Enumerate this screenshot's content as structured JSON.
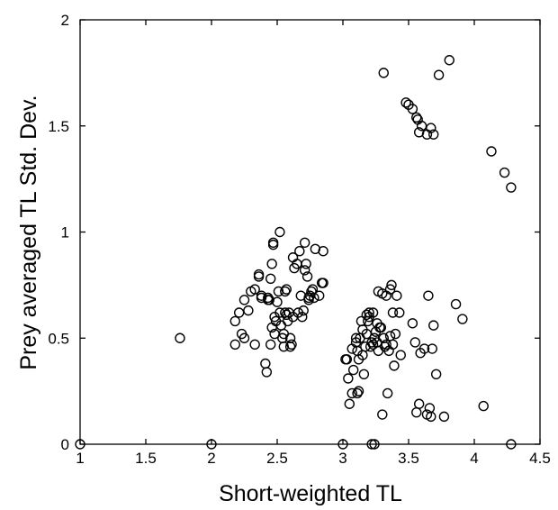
{
  "chart_data": {
    "type": "scatter",
    "xlabel": "Short-weighted TL",
    "ylabel": "Prey averaged TL Std. Dev.",
    "xlim": [
      1,
      4.5
    ],
    "ylim": [
      0,
      2
    ],
    "xticks": [
      "1",
      "1.5",
      "2",
      "2.5",
      "3",
      "3.5",
      "4",
      "4.5"
    ],
    "yticks": [
      "0",
      "0.5",
      "1",
      "1.5",
      "2"
    ],
    "grid": false,
    "legend": "none",
    "marker": "open-circle",
    "points": [
      [
        1.0,
        0.0
      ],
      [
        2.0,
        0.0
      ],
      [
        3.0,
        0.0
      ],
      [
        3.22,
        0.0
      ],
      [
        3.24,
        0.0
      ],
      [
        4.28,
        0.0
      ],
      [
        1.76,
        0.5
      ],
      [
        2.18,
        0.47
      ],
      [
        2.18,
        0.58
      ],
      [
        2.21,
        0.62
      ],
      [
        2.23,
        0.52
      ],
      [
        2.25,
        0.5
      ],
      [
        2.25,
        0.68
      ],
      [
        2.28,
        0.63
      ],
      [
        2.3,
        0.72
      ],
      [
        2.33,
        0.73
      ],
      [
        2.33,
        0.47
      ],
      [
        2.36,
        0.8
      ],
      [
        2.36,
        0.79
      ],
      [
        2.38,
        0.69
      ],
      [
        2.38,
        0.7
      ],
      [
        2.41,
        0.38
      ],
      [
        2.42,
        0.34
      ],
      [
        2.43,
        0.69
      ],
      [
        2.43,
        0.68
      ],
      [
        2.44,
        0.68
      ],
      [
        2.45,
        0.47
      ],
      [
        2.45,
        0.78
      ],
      [
        2.46,
        0.85
      ],
      [
        2.46,
        0.55
      ],
      [
        2.47,
        0.95
      ],
      [
        2.47,
        0.94
      ],
      [
        2.48,
        0.6
      ],
      [
        2.48,
        0.52
      ],
      [
        2.49,
        0.58
      ],
      [
        2.5,
        0.67
      ],
      [
        2.51,
        0.72
      ],
      [
        2.52,
        1.0
      ],
      [
        2.52,
        0.62
      ],
      [
        2.53,
        0.56
      ],
      [
        2.54,
        0.5
      ],
      [
        2.55,
        0.46
      ],
      [
        2.55,
        0.52
      ],
      [
        2.56,
        0.62
      ],
      [
        2.56,
        0.72
      ],
      [
        2.57,
        0.73
      ],
      [
        2.57,
        0.61
      ],
      [
        2.58,
        0.58
      ],
      [
        2.59,
        0.62
      ],
      [
        2.6,
        0.5
      ],
      [
        2.6,
        0.46
      ],
      [
        2.61,
        0.47
      ],
      [
        2.62,
        0.6
      ],
      [
        2.62,
        0.88
      ],
      [
        2.63,
        0.83
      ],
      [
        2.65,
        0.85
      ],
      [
        2.66,
        0.62
      ],
      [
        2.67,
        0.91
      ],
      [
        2.68,
        0.7
      ],
      [
        2.69,
        0.6
      ],
      [
        2.7,
        0.63
      ],
      [
        2.71,
        0.95
      ],
      [
        2.71,
        0.82
      ],
      [
        2.72,
        0.85
      ],
      [
        2.73,
        0.79
      ],
      [
        2.74,
        0.69
      ],
      [
        2.74,
        0.68
      ],
      [
        2.75,
        0.7
      ],
      [
        2.76,
        0.72
      ],
      [
        2.77,
        0.73
      ],
      [
        2.78,
        0.69
      ],
      [
        2.79,
        0.92
      ],
      [
        2.82,
        0.7
      ],
      [
        2.84,
        0.76
      ],
      [
        2.85,
        0.76
      ],
      [
        2.85,
        0.91
      ],
      [
        3.02,
        0.4
      ],
      [
        3.03,
        0.4
      ],
      [
        3.04,
        0.31
      ],
      [
        3.05,
        0.19
      ],
      [
        3.07,
        0.24
      ],
      [
        3.07,
        0.45
      ],
      [
        3.08,
        0.35
      ],
      [
        3.1,
        0.48
      ],
      [
        3.1,
        0.5
      ],
      [
        3.11,
        0.44
      ],
      [
        3.11,
        0.24
      ],
      [
        3.12,
        0.25
      ],
      [
        3.12,
        0.4
      ],
      [
        3.13,
        0.5
      ],
      [
        3.14,
        0.58
      ],
      [
        3.15,
        0.42
      ],
      [
        3.15,
        0.54
      ],
      [
        3.16,
        0.33
      ],
      [
        3.17,
        0.46
      ],
      [
        3.18,
        0.52
      ],
      [
        3.18,
        0.61
      ],
      [
        3.19,
        0.58
      ],
      [
        3.2,
        0.6
      ],
      [
        3.2,
        0.62
      ],
      [
        3.21,
        0.46
      ],
      [
        3.22,
        0.48
      ],
      [
        3.23,
        0.62
      ],
      [
        3.23,
        0.47
      ],
      [
        3.24,
        0.5
      ],
      [
        3.25,
        0.53
      ],
      [
        3.26,
        0.48
      ],
      [
        3.26,
        0.57
      ],
      [
        3.27,
        0.44
      ],
      [
        3.27,
        0.72
      ],
      [
        3.28,
        0.55
      ],
      [
        3.29,
        0.55
      ],
      [
        3.3,
        0.14
      ],
      [
        3.3,
        0.71
      ],
      [
        3.31,
        0.5
      ],
      [
        3.32,
        0.46
      ],
      [
        3.33,
        0.47
      ],
      [
        3.33,
        0.7
      ],
      [
        3.34,
        0.24
      ],
      [
        3.35,
        0.44
      ],
      [
        3.36,
        0.73
      ],
      [
        3.36,
        0.51
      ],
      [
        3.37,
        0.75
      ],
      [
        3.38,
        0.47
      ],
      [
        3.38,
        0.62
      ],
      [
        3.39,
        0.37
      ],
      [
        3.4,
        0.52
      ],
      [
        3.41,
        0.7
      ],
      [
        3.43,
        0.62
      ],
      [
        3.44,
        0.42
      ],
      [
        3.31,
        1.75
      ],
      [
        3.48,
        1.61
      ],
      [
        3.5,
        1.6
      ],
      [
        3.53,
        1.58
      ],
      [
        3.56,
        1.54
      ],
      [
        3.57,
        1.53
      ],
      [
        3.58,
        1.47
      ],
      [
        3.6,
        1.5
      ],
      [
        3.64,
        1.46
      ],
      [
        3.67,
        1.49
      ],
      [
        3.69,
        1.46
      ],
      [
        3.73,
        1.74
      ],
      [
        3.81,
        1.81
      ],
      [
        3.53,
        0.57
      ],
      [
        3.55,
        0.48
      ],
      [
        3.56,
        0.15
      ],
      [
        3.58,
        0.19
      ],
      [
        3.59,
        0.43
      ],
      [
        3.62,
        0.45
      ],
      [
        3.64,
        0.14
      ],
      [
        3.65,
        0.7
      ],
      [
        3.66,
        0.17
      ],
      [
        3.67,
        0.13
      ],
      [
        3.68,
        0.45
      ],
      [
        3.69,
        0.56
      ],
      [
        3.71,
        0.33
      ],
      [
        3.77,
        0.13
      ],
      [
        3.86,
        0.66
      ],
      [
        3.91,
        0.59
      ],
      [
        4.07,
        0.18
      ],
      [
        4.13,
        1.38
      ],
      [
        4.23,
        1.28
      ],
      [
        4.28,
        1.21
      ]
    ]
  }
}
